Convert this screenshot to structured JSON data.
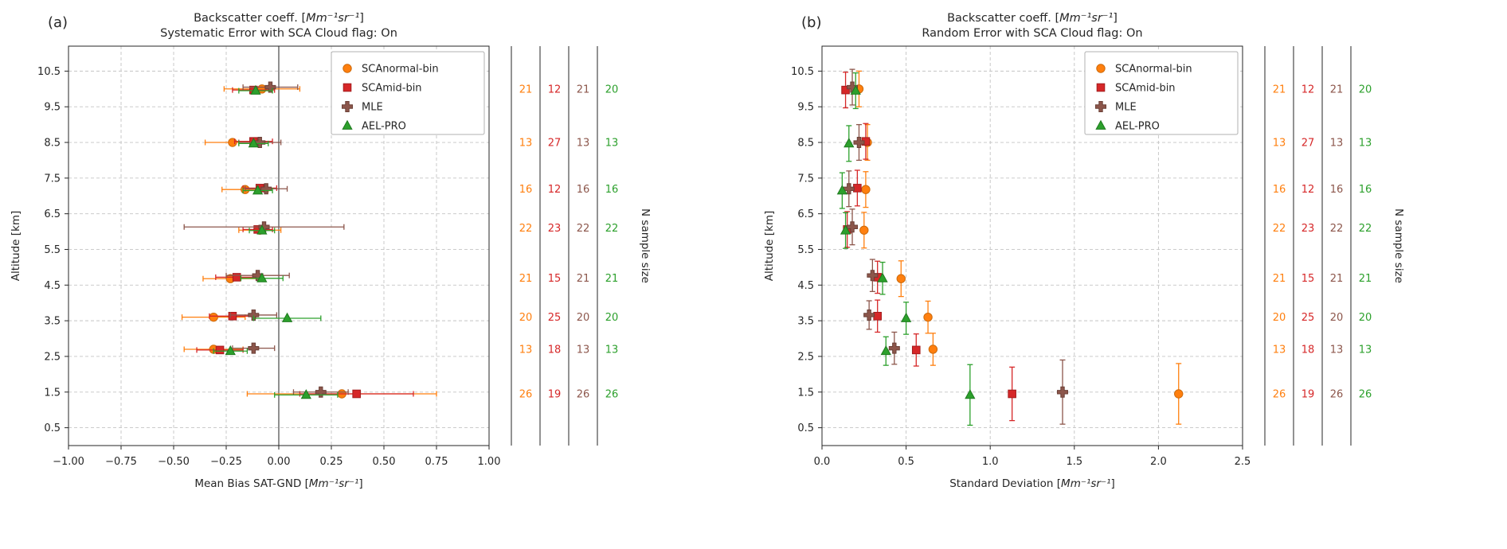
{
  "figure": {
    "background": "#ffffff",
    "text_color": "#262626",
    "grid_color": "#c4c4c4",
    "spine_color": "#262626"
  },
  "chart_data": [
    {
      "type": "scatter",
      "panel_letter": "(a)",
      "title_prefix": "Backscatter coeff. [",
      "title_units": "Mm⁻¹sr⁻¹",
      "title_suffix": "]",
      "title_line2": "Systematic Error with SCA Cloud flag: On",
      "xlabel_prefix": "Mean Bias SAT-GND [",
      "xlabel_units": "Mm⁻¹sr⁻¹",
      "xlabel_suffix": "]",
      "ylabel": "Altitude [km]",
      "right_axis_label": "N sample size",
      "xlim": [
        -1.0,
        1.0
      ],
      "ylim": [
        0,
        11.2
      ],
      "xticks": [
        -1.0,
        -0.75,
        -0.5,
        -0.25,
        0.0,
        0.25,
        0.5,
        0.75,
        1.0
      ],
      "xtick_labels": [
        "−1.00",
        "−0.75",
        "−0.50",
        "−0.25",
        "0.00",
        "0.25",
        "0.50",
        "0.75",
        "1.00"
      ],
      "yticks": [
        0.5,
        1.5,
        2.5,
        3.5,
        4.5,
        5.5,
        6.5,
        7.5,
        8.5,
        9.5,
        10.5
      ],
      "ytick_labels": [
        "0.5",
        "1.5",
        "2.5",
        "3.5",
        "4.5",
        "5.5",
        "6.5",
        "7.5",
        "8.5",
        "9.5",
        "10.5"
      ],
      "grid": true,
      "zero_line": true,
      "error_orientation": "horizontal",
      "legend_position": "upper-right",
      "series": [
        {
          "name": "SCAnormal-bin",
          "marker": "circle",
          "color": "#ff7f0e",
          "edge": "#cc6a0b",
          "x": [
            -0.08,
            -0.22,
            -0.16,
            -0.09,
            -0.23,
            -0.31,
            -0.31,
            0.3
          ],
          "y": [
            10.0,
            8.5,
            7.18,
            6.04,
            4.68,
            3.6,
            2.7,
            1.45
          ],
          "err": [
            0.18,
            0.13,
            0.11,
            0.1,
            0.13,
            0.15,
            0.14,
            0.45
          ]
        },
        {
          "name": "SCAmid-bin",
          "marker": "square",
          "color": "#d62728",
          "edge": "#a31d1e",
          "x": [
            -0.12,
            -0.12,
            -0.09,
            -0.1,
            -0.2,
            -0.22,
            -0.28,
            0.37
          ],
          "y": [
            9.97,
            8.53,
            7.22,
            6.06,
            4.72,
            3.63,
            2.68,
            1.45
          ],
          "err": [
            0.1,
            0.09,
            0.08,
            0.07,
            0.1,
            0.11,
            0.11,
            0.27
          ]
        },
        {
          "name": "MLE",
          "marker": "plus",
          "color": "#8c564b",
          "edge": "#6b4037",
          "x": [
            -0.04,
            -0.09,
            -0.06,
            -0.07,
            -0.1,
            -0.12,
            -0.12,
            0.2
          ],
          "y": [
            10.05,
            8.5,
            7.2,
            6.13,
            4.77,
            3.66,
            2.73,
            1.5
          ],
          "err": [
            0.13,
            0.1,
            0.1,
            0.38,
            0.15,
            0.11,
            0.1,
            0.13
          ]
        },
        {
          "name": "AEL-PRO",
          "marker": "triangle",
          "color": "#2ca02c",
          "edge": "#1e7a1e",
          "x": [
            -0.11,
            -0.12,
            -0.1,
            -0.08,
            -0.08,
            0.04,
            -0.23,
            0.13
          ],
          "y": [
            9.95,
            8.47,
            7.15,
            6.03,
            4.69,
            3.57,
            2.65,
            1.42
          ],
          "err": [
            0.08,
            0.07,
            0.07,
            0.06,
            0.1,
            0.16,
            0.08,
            0.15
          ]
        }
      ],
      "sample_sizes": {
        "label": "N sample size",
        "row_altitudes": [
          10.0,
          8.5,
          7.2,
          6.1,
          4.7,
          3.6,
          2.7,
          1.45
        ],
        "columns": [
          {
            "name": "SCAnormal-bin",
            "color": "#ff7f0e",
            "values": [
              21,
              13,
              16,
              22,
              21,
              20,
              13,
              26
            ]
          },
          {
            "name": "SCAmid-bin",
            "color": "#d62728",
            "values": [
              12,
              27,
              12,
              23,
              15,
              25,
              18,
              19
            ]
          },
          {
            "name": "MLE",
            "color": "#8c564b",
            "values": [
              21,
              13,
              16,
              22,
              21,
              20,
              13,
              26
            ]
          },
          {
            "name": "AEL-PRO",
            "color": "#2ca02c",
            "values": [
              20,
              13,
              16,
              22,
              21,
              20,
              13,
              26
            ]
          }
        ]
      }
    },
    {
      "type": "scatter",
      "panel_letter": "(b)",
      "title_prefix": "Backscatter coeff. [",
      "title_units": "Mm⁻¹sr⁻¹",
      "title_suffix": "]",
      "title_line2": "Random Error with SCA Cloud flag: On",
      "xlabel_prefix": "Standard Deviation [",
      "xlabel_units": "Mm⁻¹sr⁻¹",
      "xlabel_suffix": "]",
      "ylabel": "Altitude [km]",
      "right_axis_label": "N sample size",
      "xlim": [
        0.0,
        2.5
      ],
      "ylim": [
        0,
        11.2
      ],
      "xticks": [
        0.0,
        0.5,
        1.0,
        1.5,
        2.0,
        2.5
      ],
      "xtick_labels": [
        "0.0",
        "0.5",
        "1.0",
        "1.5",
        "2.0",
        "2.5"
      ],
      "yticks": [
        0.5,
        1.5,
        2.5,
        3.5,
        4.5,
        5.5,
        6.5,
        7.5,
        8.5,
        9.5,
        10.5
      ],
      "ytick_labels": [
        "0.5",
        "1.5",
        "2.5",
        "3.5",
        "4.5",
        "5.5",
        "6.5",
        "7.5",
        "8.5",
        "9.5",
        "10.5"
      ],
      "grid": true,
      "zero_line": false,
      "error_orientation": "vertical",
      "legend_position": "upper-right",
      "series": [
        {
          "name": "SCAnormal-bin",
          "marker": "circle",
          "color": "#ff7f0e",
          "edge": "#cc6a0b",
          "x": [
            0.22,
            0.27,
            0.26,
            0.25,
            0.47,
            0.63,
            0.66,
            2.12
          ],
          "y": [
            10.0,
            8.5,
            7.18,
            6.04,
            4.68,
            3.6,
            2.7,
            1.45
          ],
          "err": [
            0.5,
            0.5,
            0.5,
            0.5,
            0.5,
            0.45,
            0.45,
            0.85
          ]
        },
        {
          "name": "SCAmid-bin",
          "marker": "square",
          "color": "#d62728",
          "edge": "#a31d1e",
          "x": [
            0.14,
            0.26,
            0.21,
            0.15,
            0.33,
            0.33,
            0.56,
            1.13
          ],
          "y": [
            9.97,
            8.53,
            7.22,
            6.06,
            4.72,
            3.63,
            2.68,
            1.45
          ],
          "err": [
            0.5,
            0.5,
            0.5,
            0.5,
            0.45,
            0.45,
            0.45,
            0.75
          ]
        },
        {
          "name": "MLE",
          "marker": "plus",
          "color": "#8c564b",
          "edge": "#6b4037",
          "x": [
            0.18,
            0.22,
            0.16,
            0.18,
            0.3,
            0.28,
            0.43,
            1.43
          ],
          "y": [
            10.05,
            8.5,
            7.2,
            6.13,
            4.77,
            3.66,
            2.73,
            1.5
          ],
          "err": [
            0.5,
            0.5,
            0.5,
            0.5,
            0.45,
            0.4,
            0.45,
            0.9
          ]
        },
        {
          "name": "AEL-PRO",
          "marker": "triangle",
          "color": "#2ca02c",
          "edge": "#1e7a1e",
          "x": [
            0.2,
            0.16,
            0.12,
            0.14,
            0.36,
            0.5,
            0.38,
            0.88
          ],
          "y": [
            9.95,
            8.47,
            7.15,
            6.03,
            4.69,
            3.57,
            2.65,
            1.42
          ],
          "err": [
            0.5,
            0.5,
            0.5,
            0.5,
            0.45,
            0.45,
            0.4,
            0.85
          ]
        }
      ],
      "sample_sizes": {
        "label": "N sample size",
        "row_altitudes": [
          10.0,
          8.5,
          7.2,
          6.1,
          4.7,
          3.6,
          2.7,
          1.45
        ],
        "columns": [
          {
            "name": "SCAnormal-bin",
            "color": "#ff7f0e",
            "values": [
              21,
              13,
              16,
              22,
              21,
              20,
              13,
              26
            ]
          },
          {
            "name": "SCAmid-bin",
            "color": "#d62728",
            "values": [
              12,
              27,
              12,
              23,
              15,
              25,
              18,
              19
            ]
          },
          {
            "name": "MLE",
            "color": "#8c564b",
            "values": [
              21,
              13,
              16,
              22,
              21,
              20,
              13,
              26
            ]
          },
          {
            "name": "AEL-PRO",
            "color": "#2ca02c",
            "values": [
              20,
              13,
              16,
              22,
              21,
              20,
              13,
              26
            ]
          }
        ]
      }
    }
  ]
}
